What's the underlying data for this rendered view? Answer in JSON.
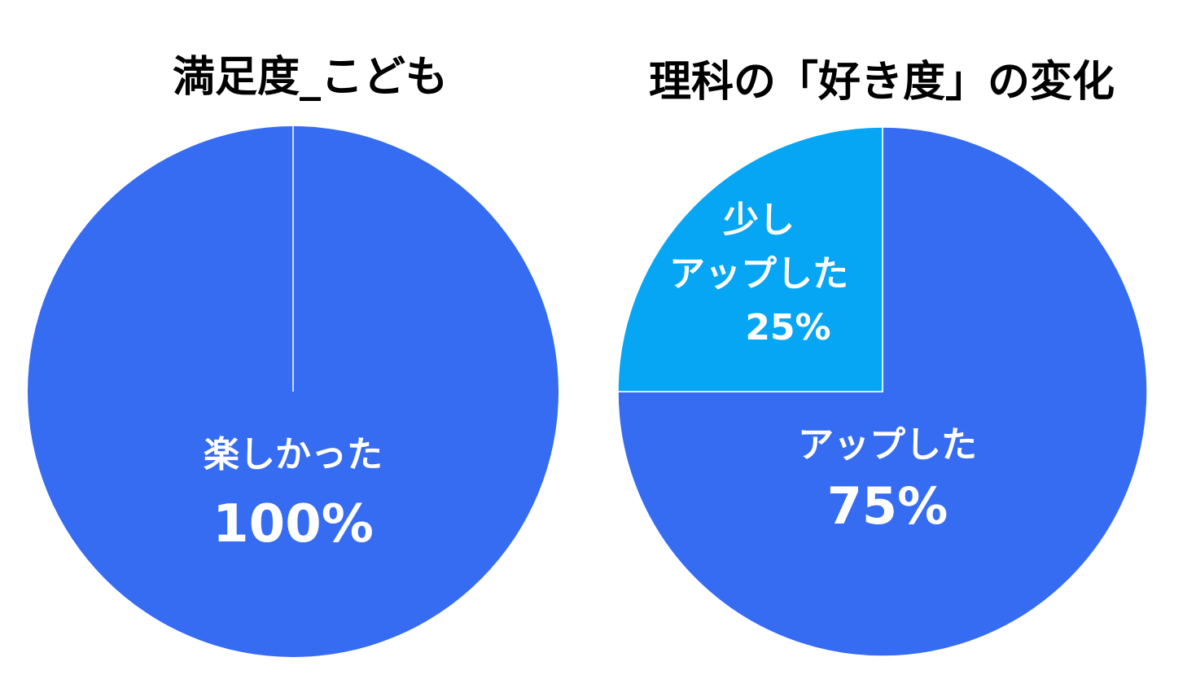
{
  "chart_data": [
    {
      "type": "pie",
      "title": "満足度_こども",
      "slices": [
        {
          "label_lines": [
            "楽しかった"
          ],
          "value": 100,
          "value_label": "100%",
          "color": "#366cf2"
        }
      ]
    },
    {
      "type": "pie",
      "title": "理科の「好き度」の変化",
      "slices": [
        {
          "label_lines": [
            "アップした"
          ],
          "value": 75,
          "value_label": "75%",
          "color": "#366cf2"
        },
        {
          "label_lines": [
            "少し",
            "アップした"
          ],
          "value": 25,
          "value_label": "25%",
          "color": "#06a6f4"
        }
      ]
    }
  ]
}
